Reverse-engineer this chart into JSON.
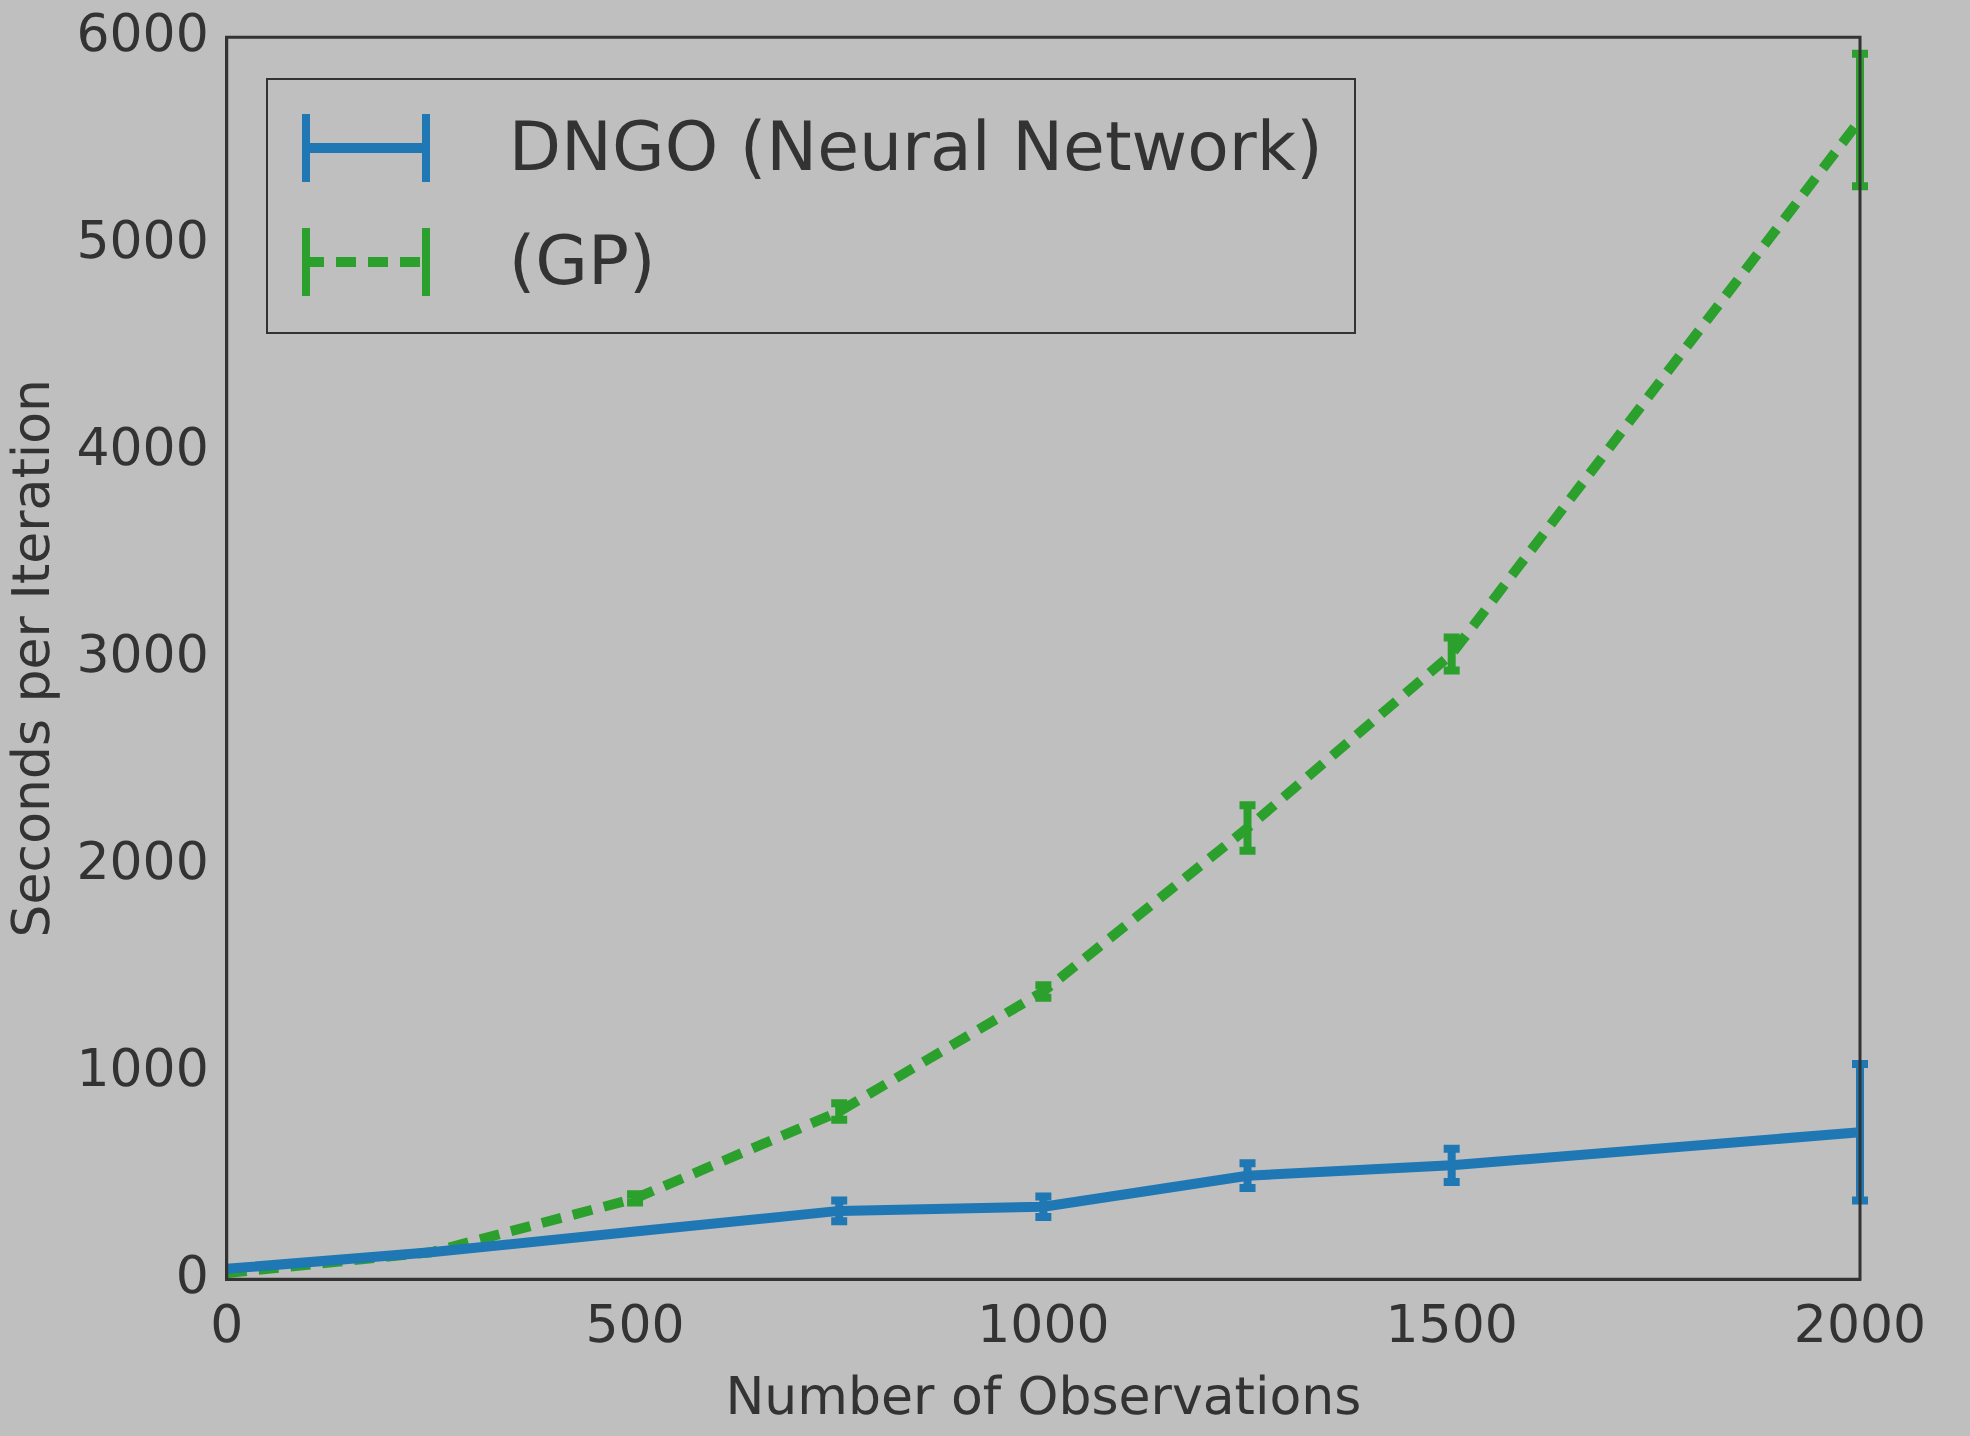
{
  "chart_data": {
    "type": "line",
    "xlabel": "Number of Observations",
    "ylabel": "Seconds per Iteration",
    "x": [
      0,
      250,
      500,
      750,
      1000,
      1250,
      1500,
      2000
    ],
    "series": [
      {
        "name": "DNGO (Neural Network)",
        "color": "#1f77b4",
        "line_style": "solid",
        "values": [
          50,
          130,
          230,
          330,
          350,
          500,
          550,
          710
        ],
        "errors": [
          null,
          null,
          null,
          50,
          50,
          60,
          80,
          330
        ]
      },
      {
        "name": "(GP)",
        "color": "#2ca02c",
        "line_style": "dashed",
        "values": [
          30,
          130,
          390,
          810,
          1390,
          2180,
          3020,
          5600
        ],
        "errors": [
          null,
          null,
          20,
          40,
          30,
          110,
          80,
          320
        ]
      }
    ],
    "xlim": [
      0,
      2000
    ],
    "xticks": [
      0,
      500,
      1000,
      1500,
      2000
    ],
    "ylim": [
      0,
      6000
    ],
    "yticks": [
      0,
      1000,
      2000,
      3000,
      4000,
      5000,
      6000
    ],
    "grid": false,
    "legend": "top left",
    "marker": "none"
  }
}
